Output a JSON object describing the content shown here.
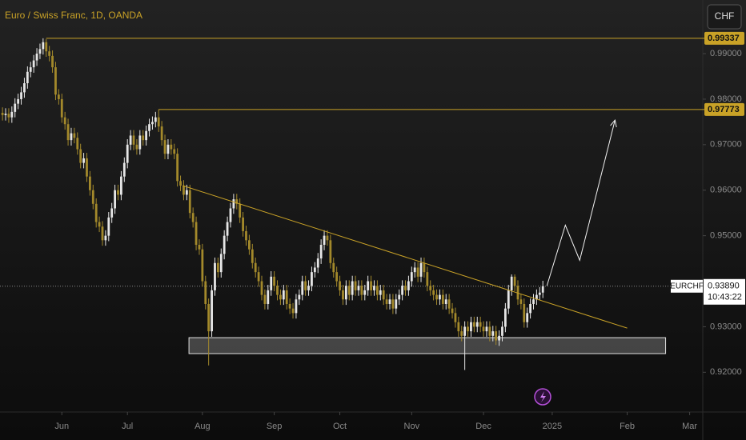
{
  "chart_data": {
    "type": "candlestick",
    "title": "Euro / Swiss Franc, 1D, OANDA",
    "currency": "CHF",
    "up_color": "#e6e6e6",
    "down_color": "#a3892b",
    "level_color": "#c9a227",
    "grid": false,
    "xlim": [
      -0.8,
      224.2
    ],
    "xticks": [
      {
        "value": 19,
        "label": "Jun"
      },
      {
        "value": 40,
        "label": "Jul"
      },
      {
        "value": 64,
        "label": "Aug"
      },
      {
        "value": 87,
        "label": "Sep"
      },
      {
        "value": 108,
        "label": "Oct"
      },
      {
        "value": 131,
        "label": "Nov"
      },
      {
        "value": 154,
        "label": "Dec"
      },
      {
        "value": 176,
        "label": "2025"
      },
      {
        "value": 200,
        "label": "Feb"
      },
      {
        "value": 220,
        "label": "Mar"
      }
    ],
    "ylim": [
      0.91127,
      1.00178
    ],
    "yticks": [
      {
        "value": 0.92,
        "label": "0.92000"
      },
      {
        "value": 0.93,
        "label": "0.93000"
      },
      {
        "value": 0.95,
        "label": "0.95000"
      },
      {
        "value": 0.96,
        "label": "0.96000"
      },
      {
        "value": 0.97,
        "label": "0.97000"
      },
      {
        "value": 0.98,
        "label": "0.98000"
      },
      {
        "value": 0.99,
        "label": "0.99000"
      }
    ],
    "levels": [
      {
        "value": 0.99337,
        "label": "0.99337",
        "start": 14
      },
      {
        "value": 0.97773,
        "label": "0.97773",
        "start": 50
      }
    ],
    "last": {
      "value": 0.9389,
      "label": "0.93890",
      "symbol": "EURCHF",
      "countdown": "10:43:22"
    },
    "trendline": {
      "x": [
        57.7,
        200
      ],
      "y": [
        0.961,
        0.9297
      ]
    },
    "zone": {
      "x": [
        59.7,
        212.3
      ],
      "y": [
        0.9241,
        0.9276
      ]
    },
    "projection": {
      "x": [
        174.3,
        180.2,
        184.8,
        196.1
      ],
      "y": [
        0.939,
        0.9523,
        0.9446,
        0.9754
      ]
    },
    "ohlc": [
      [
        0.977,
        0.9782,
        0.9753,
        0.9765
      ],
      [
        0.9765,
        0.978,
        0.9753,
        0.9768
      ],
      [
        0.9768,
        0.978,
        0.9748,
        0.976
      ],
      [
        0.976,
        0.9784,
        0.9748,
        0.9772
      ],
      [
        0.9772,
        0.9802,
        0.976,
        0.979
      ],
      [
        0.979,
        0.9812,
        0.9778,
        0.98
      ],
      [
        0.98,
        0.9827,
        0.9788,
        0.9815
      ],
      [
        0.9815,
        0.9847,
        0.9803,
        0.9835
      ],
      [
        0.9835,
        0.9872,
        0.9823,
        0.986
      ],
      [
        0.986,
        0.9882,
        0.9848,
        0.987
      ],
      [
        0.987,
        0.9897,
        0.9858,
        0.9885
      ],
      [
        0.9885,
        0.9912,
        0.9873,
        0.99
      ],
      [
        0.99,
        0.9922,
        0.9888,
        0.991
      ],
      [
        0.991,
        0.99337,
        0.9898,
        0.9925
      ],
      [
        0.9925,
        0.9932,
        0.9893,
        0.9905
      ],
      [
        0.9905,
        0.9917,
        0.9883,
        0.9895
      ],
      [
        0.9895,
        0.9907,
        0.9858,
        0.987
      ],
      [
        0.987,
        0.9882,
        0.9798,
        0.981
      ],
      [
        0.981,
        0.9822,
        0.9788,
        0.98
      ],
      [
        0.98,
        0.9812,
        0.9748,
        0.976
      ],
      [
        0.976,
        0.9772,
        0.9733,
        0.9745
      ],
      [
        0.9745,
        0.9757,
        0.9698,
        0.971
      ],
      [
        0.971,
        0.9737,
        0.9698,
        0.9725
      ],
      [
        0.9725,
        0.9737,
        0.9703,
        0.9715
      ],
      [
        0.9715,
        0.9727,
        0.9678,
        0.969
      ],
      [
        0.969,
        0.9702,
        0.9648,
        0.966
      ],
      [
        0.966,
        0.9682,
        0.9648,
        0.967
      ],
      [
        0.967,
        0.9682,
        0.9618,
        0.963
      ],
      [
        0.963,
        0.9642,
        0.9588,
        0.96
      ],
      [
        0.96,
        0.9612,
        0.9558,
        0.957
      ],
      [
        0.957,
        0.9582,
        0.9518,
        0.953
      ],
      [
        0.953,
        0.9542,
        0.9508,
        0.952
      ],
      [
        0.952,
        0.9532,
        0.9478,
        0.949
      ],
      [
        0.949,
        0.9512,
        0.9478,
        0.95
      ],
      [
        0.95,
        0.9552,
        0.9488,
        0.954
      ],
      [
        0.954,
        0.9572,
        0.9528,
        0.956
      ],
      [
        0.956,
        0.9612,
        0.9548,
        0.96
      ],
      [
        0.96,
        0.9612,
        0.9578,
        0.959
      ],
      [
        0.959,
        0.9642,
        0.9578,
        0.963
      ],
      [
        0.963,
        0.9672,
        0.9618,
        0.966
      ],
      [
        0.966,
        0.9712,
        0.9648,
        0.97
      ],
      [
        0.97,
        0.9732,
        0.9688,
        0.972
      ],
      [
        0.972,
        0.9732,
        0.9688,
        0.97
      ],
      [
        0.97,
        0.9712,
        0.9678,
        0.969
      ],
      [
        0.969,
        0.9732,
        0.9678,
        0.972
      ],
      [
        0.972,
        0.9732,
        0.9698,
        0.971
      ],
      [
        0.971,
        0.9742,
        0.9698,
        0.973
      ],
      [
        0.973,
        0.9757,
        0.9718,
        0.9745
      ],
      [
        0.9745,
        0.9762,
        0.9733,
        0.975
      ],
      [
        0.975,
        0.9772,
        0.9738,
        0.976
      ],
      [
        0.976,
        0.97773,
        0.9728,
        0.974
      ],
      [
        0.974,
        0.9752,
        0.9698,
        0.971
      ],
      [
        0.971,
        0.9722,
        0.9668,
        0.968
      ],
      [
        0.968,
        0.9712,
        0.9668,
        0.97
      ],
      [
        0.97,
        0.9712,
        0.9678,
        0.969
      ],
      [
        0.969,
        0.9702,
        0.9668,
        0.968
      ],
      [
        0.968,
        0.9692,
        0.9608,
        0.962
      ],
      [
        0.962,
        0.9632,
        0.9598,
        0.961
      ],
      [
        0.961,
        0.9622,
        0.9578,
        0.959
      ],
      [
        0.959,
        0.9612,
        0.9578,
        0.96
      ],
      [
        0.96,
        0.9612,
        0.9538,
        0.955
      ],
      [
        0.955,
        0.9562,
        0.9518,
        0.953
      ],
      [
        0.953,
        0.9542,
        0.9468,
        0.948
      ],
      [
        0.948,
        0.9492,
        0.9458,
        0.947
      ],
      [
        0.947,
        0.9482,
        0.9388,
        0.94
      ],
      [
        0.94,
        0.9412,
        0.9338,
        0.935
      ],
      [
        0.935,
        0.9362,
        0.9215,
        0.929
      ],
      [
        0.929,
        0.9392,
        0.9278,
        0.938
      ],
      [
        0.938,
        0.9452,
        0.9368,
        0.944
      ],
      [
        0.944,
        0.9452,
        0.9408,
        0.942
      ],
      [
        0.942,
        0.9472,
        0.9408,
        0.946
      ],
      [
        0.946,
        0.9512,
        0.9448,
        0.95
      ],
      [
        0.95,
        0.9542,
        0.9488,
        0.953
      ],
      [
        0.953,
        0.9572,
        0.9518,
        0.956
      ],
      [
        0.956,
        0.9592,
        0.9548,
        0.958
      ],
      [
        0.958,
        0.9592,
        0.9558,
        0.957
      ],
      [
        0.957,
        0.9582,
        0.9528,
        0.954
      ],
      [
        0.954,
        0.9552,
        0.9498,
        0.951
      ],
      [
        0.951,
        0.9522,
        0.9478,
        0.949
      ],
      [
        0.949,
        0.9502,
        0.9458,
        0.947
      ],
      [
        0.947,
        0.9482,
        0.9428,
        0.944
      ],
      [
        0.944,
        0.9452,
        0.9408,
        0.942
      ],
      [
        0.942,
        0.9432,
        0.9388,
        0.94
      ],
      [
        0.94,
        0.9412,
        0.9358,
        0.937
      ],
      [
        0.937,
        0.9382,
        0.9338,
        0.935
      ],
      [
        0.935,
        0.9392,
        0.9338,
        0.938
      ],
      [
        0.938,
        0.9422,
        0.9368,
        0.941
      ],
      [
        0.941,
        0.9422,
        0.9378,
        0.939
      ],
      [
        0.939,
        0.9402,
        0.9358,
        0.937
      ],
      [
        0.937,
        0.9382,
        0.9348,
        0.936
      ],
      [
        0.936,
        0.9392,
        0.9348,
        0.938
      ],
      [
        0.938,
        0.9392,
        0.9338,
        0.935
      ],
      [
        0.935,
        0.9362,
        0.9328,
        0.934
      ],
      [
        0.934,
        0.9352,
        0.9318,
        0.933
      ],
      [
        0.933,
        0.9372,
        0.9318,
        0.936
      ],
      [
        0.936,
        0.9382,
        0.9348,
        0.937
      ],
      [
        0.937,
        0.9412,
        0.9358,
        0.94
      ],
      [
        0.94,
        0.9412,
        0.9368,
        0.938
      ],
      [
        0.938,
        0.9402,
        0.9368,
        0.939
      ],
      [
        0.939,
        0.9432,
        0.9378,
        0.942
      ],
      [
        0.942,
        0.9442,
        0.9408,
        0.943
      ],
      [
        0.943,
        0.9462,
        0.9418,
        0.945
      ],
      [
        0.945,
        0.9492,
        0.9438,
        0.948
      ],
      [
        0.948,
        0.9512,
        0.9468,
        0.95
      ],
      [
        0.95,
        0.9512,
        0.9478,
        0.949
      ],
      [
        0.949,
        0.9502,
        0.9428,
        0.944
      ],
      [
        0.944,
        0.9452,
        0.9408,
        0.942
      ],
      [
        0.942,
        0.9432,
        0.9388,
        0.94
      ],
      [
        0.94,
        0.9412,
        0.9368,
        0.938
      ],
      [
        0.938,
        0.9392,
        0.9348,
        0.936
      ],
      [
        0.936,
        0.9402,
        0.9348,
        0.939
      ],
      [
        0.939,
        0.9402,
        0.9358,
        0.937
      ],
      [
        0.937,
        0.9412,
        0.9358,
        0.94
      ],
      [
        0.94,
        0.9412,
        0.9368,
        0.938
      ],
      [
        0.938,
        0.9402,
        0.9368,
        0.939
      ],
      [
        0.939,
        0.9402,
        0.9358,
        0.937
      ],
      [
        0.937,
        0.9392,
        0.9358,
        0.938
      ],
      [
        0.938,
        0.9412,
        0.9368,
        0.94
      ],
      [
        0.94,
        0.9412,
        0.9368,
        0.938
      ],
      [
        0.938,
        0.9402,
        0.9368,
        0.939
      ],
      [
        0.939,
        0.9402,
        0.9358,
        0.937
      ],
      [
        0.937,
        0.9392,
        0.9358,
        0.938
      ],
      [
        0.938,
        0.9392,
        0.9348,
        0.936
      ],
      [
        0.936,
        0.9372,
        0.9338,
        0.935
      ],
      [
        0.935,
        0.9372,
        0.9338,
        0.936
      ],
      [
        0.936,
        0.9372,
        0.9328,
        0.934
      ],
      [
        0.934,
        0.9372,
        0.9328,
        0.936
      ],
      [
        0.936,
        0.9382,
        0.9348,
        0.937
      ],
      [
        0.937,
        0.9402,
        0.9358,
        0.939
      ],
      [
        0.939,
        0.9402,
        0.9368,
        0.938
      ],
      [
        0.938,
        0.9412,
        0.9368,
        0.94
      ],
      [
        0.94,
        0.9432,
        0.9388,
        0.942
      ],
      [
        0.942,
        0.9442,
        0.9408,
        0.943
      ],
      [
        0.943,
        0.9442,
        0.9398,
        0.941
      ],
      [
        0.941,
        0.9452,
        0.9398,
        0.944
      ],
      [
        0.944,
        0.9452,
        0.9408,
        0.942
      ],
      [
        0.942,
        0.9432,
        0.9378,
        0.939
      ],
      [
        0.939,
        0.9402,
        0.9368,
        0.938
      ],
      [
        0.938,
        0.9392,
        0.9358,
        0.937
      ],
      [
        0.937,
        0.9382,
        0.9348,
        0.936
      ],
      [
        0.936,
        0.9382,
        0.9348,
        0.937
      ],
      [
        0.937,
        0.9382,
        0.9338,
        0.935
      ],
      [
        0.935,
        0.9372,
        0.9338,
        0.936
      ],
      [
        0.936,
        0.9372,
        0.9328,
        0.934
      ],
      [
        0.934,
        0.9352,
        0.9318,
        0.933
      ],
      [
        0.933,
        0.9342,
        0.9298,
        0.931
      ],
      [
        0.931,
        0.9322,
        0.9278,
        0.929
      ],
      [
        0.929,
        0.9302,
        0.9268,
        0.928
      ],
      [
        0.928,
        0.9312,
        0.9205,
        0.93
      ],
      [
        0.93,
        0.9312,
        0.9278,
        0.929
      ],
      [
        0.929,
        0.9322,
        0.9278,
        0.931
      ],
      [
        0.931,
        0.9322,
        0.9288,
        0.93
      ],
      [
        0.93,
        0.9322,
        0.9288,
        0.931
      ],
      [
        0.931,
        0.9322,
        0.9288,
        0.93
      ],
      [
        0.93,
        0.9312,
        0.9278,
        0.929
      ],
      [
        0.929,
        0.9312,
        0.9278,
        0.93
      ],
      [
        0.93,
        0.9312,
        0.9268,
        0.928
      ],
      [
        0.928,
        0.9302,
        0.9268,
        0.929
      ],
      [
        0.929,
        0.9302,
        0.926,
        0.927
      ],
      [
        0.927,
        0.9292,
        0.9258,
        0.928
      ],
      [
        0.928,
        0.9312,
        0.9268,
        0.93
      ],
      [
        0.93,
        0.9352,
        0.9288,
        0.934
      ],
      [
        0.934,
        0.9392,
        0.9328,
        0.938
      ],
      [
        0.938,
        0.9415,
        0.9368,
        0.941
      ],
      [
        0.941,
        0.9415,
        0.9378,
        0.939
      ],
      [
        0.939,
        0.9402,
        0.9348,
        0.936
      ],
      [
        0.936,
        0.9372,
        0.9338,
        0.935
      ],
      [
        0.935,
        0.9362,
        0.9298,
        0.931
      ],
      [
        0.931,
        0.9342,
        0.9298,
        0.933
      ],
      [
        0.933,
        0.9362,
        0.9318,
        0.935
      ],
      [
        0.935,
        0.9372,
        0.9338,
        0.936
      ],
      [
        0.936,
        0.9382,
        0.9348,
        0.937
      ],
      [
        0.937,
        0.9387,
        0.9358,
        0.9375
      ],
      [
        0.9375,
        0.9401,
        0.9363,
        0.9389
      ]
    ]
  }
}
